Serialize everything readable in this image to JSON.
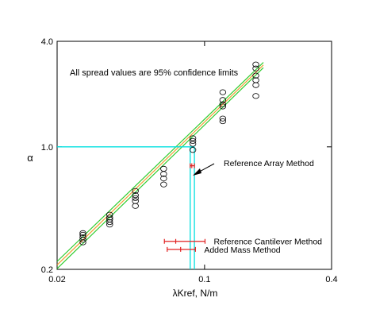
{
  "chart_data": {
    "type": "scatter",
    "xlabel": "λKref, N/m",
    "ylabel": "α",
    "x_scale": "log",
    "y_scale": "log",
    "xlim": [
      0.02,
      0.4
    ],
    "ylim": [
      0.2,
      4.0
    ],
    "x_ticks": [
      {
        "value": 0.02,
        "label": "0.02"
      },
      {
        "value": 0.1,
        "label": "0.1"
      },
      {
        "value": 0.4,
        "label": "0.4"
      }
    ],
    "y_ticks": [
      {
        "value": 0.2,
        "label": "0.2"
      },
      {
        "value": 1.0,
        "label": "1.0"
      },
      {
        "value": 4.0,
        "label": "4.0"
      }
    ],
    "grid": false,
    "note": "All spread values are 95% confidence limits",
    "points": [
      {
        "x": 0.0265,
        "y": 0.285
      },
      {
        "x": 0.0265,
        "y": 0.295
      },
      {
        "x": 0.0265,
        "y": 0.305
      },
      {
        "x": 0.0265,
        "y": 0.315
      },
      {
        "x": 0.0265,
        "y": 0.322
      },
      {
        "x": 0.0355,
        "y": 0.36
      },
      {
        "x": 0.0355,
        "y": 0.372
      },
      {
        "x": 0.0355,
        "y": 0.385
      },
      {
        "x": 0.0355,
        "y": 0.395
      },
      {
        "x": 0.0355,
        "y": 0.41
      },
      {
        "x": 0.047,
        "y": 0.46
      },
      {
        "x": 0.047,
        "y": 0.49
      },
      {
        "x": 0.047,
        "y": 0.51
      },
      {
        "x": 0.047,
        "y": 0.53
      },
      {
        "x": 0.047,
        "y": 0.56
      },
      {
        "x": 0.064,
        "y": 0.61
      },
      {
        "x": 0.064,
        "y": 0.66
      },
      {
        "x": 0.064,
        "y": 0.7
      },
      {
        "x": 0.064,
        "y": 0.75
      },
      {
        "x": 0.088,
        "y": 0.96
      },
      {
        "x": 0.088,
        "y": 1.04
      },
      {
        "x": 0.088,
        "y": 1.08
      },
      {
        "x": 0.088,
        "y": 1.12
      },
      {
        "x": 0.122,
        "y": 1.4
      },
      {
        "x": 0.122,
        "y": 1.45
      },
      {
        "x": 0.122,
        "y": 1.7
      },
      {
        "x": 0.122,
        "y": 1.75
      },
      {
        "x": 0.122,
        "y": 1.85
      },
      {
        "x": 0.122,
        "y": 2.05
      },
      {
        "x": 0.175,
        "y": 1.95
      },
      {
        "x": 0.175,
        "y": 2.25
      },
      {
        "x": 0.175,
        "y": 2.4
      },
      {
        "x": 0.175,
        "y": 2.55
      },
      {
        "x": 0.175,
        "y": 2.8
      },
      {
        "x": 0.175,
        "y": 2.95
      }
    ],
    "fit_lines": [
      {
        "color": "#f0a030",
        "x": [
          0.02,
          0.19
        ],
        "y": [
          0.212,
          2.93
        ]
      },
      {
        "color": "#2ecc2e",
        "x": [
          0.02,
          0.19
        ],
        "y": [
          0.222,
          3.03
        ]
      },
      {
        "color": "#2ecc2e",
        "x": [
          0.02,
          0.19
        ],
        "y": [
          0.202,
          2.83
        ]
      }
    ],
    "reference_lines": {
      "color": "#00e0e0",
      "alpha": 1.0,
      "x_band": [
        0.0855,
        0.0895
      ]
    },
    "methods": [
      {
        "label": "Reference Array Method",
        "x": 0.087,
        "x_low": 0.0855,
        "x_high": 0.0895,
        "y": 0.78
      },
      {
        "label": "Reference Cantilever Method",
        "x": 0.073,
        "x_low": 0.0645,
        "x_high": 0.1005,
        "y": 0.289
      },
      {
        "label": "Added Mass Method",
        "x": 0.077,
        "x_low": 0.0665,
        "x_high": 0.0905,
        "y": 0.26
      }
    ],
    "colors": {
      "points": "#000000",
      "error_bars": "#e02020",
      "axes": "#000000"
    }
  }
}
